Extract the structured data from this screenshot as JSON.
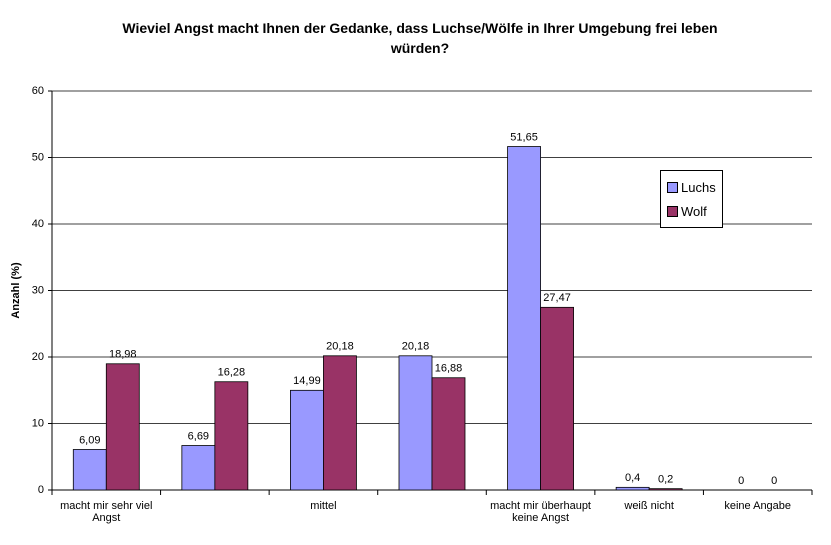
{
  "chart_data": {
    "type": "bar",
    "title": "Wieviel Angst macht Ihnen der Gedanke, dass Luchse/Wölfe in Ihrer Umgebung frei leben würden?",
    "y_label": "Anzahl (%)",
    "categories": [
      "macht mir sehr viel Angst",
      null,
      "mittel",
      null,
      "macht mir überhaupt keine Angst",
      "weiß nicht",
      "keine Angabe"
    ],
    "series": [
      {
        "name": "Luchs",
        "color": "#9999ff",
        "values": [
          6.09,
          6.69,
          14.99,
          20.18,
          51.65,
          0.4,
          0
        ],
        "value_labels": [
          "6,09",
          "6,69",
          "14,99",
          "20,18",
          "51,65",
          "0,4",
          "0"
        ]
      },
      {
        "name": "Wolf",
        "color": "#993366",
        "values": [
          18.98,
          16.28,
          20.18,
          16.88,
          27.47,
          0.2,
          0
        ],
        "value_labels": [
          "18,98",
          "16,28",
          "20,18",
          "16,88",
          "27,47",
          "0,2",
          "0"
        ]
      }
    ],
    "ylim": [
      0,
      60
    ],
    "yticks": [
      0,
      10,
      20,
      30,
      40,
      50,
      60
    ],
    "grid": true,
    "legend": "right"
  }
}
